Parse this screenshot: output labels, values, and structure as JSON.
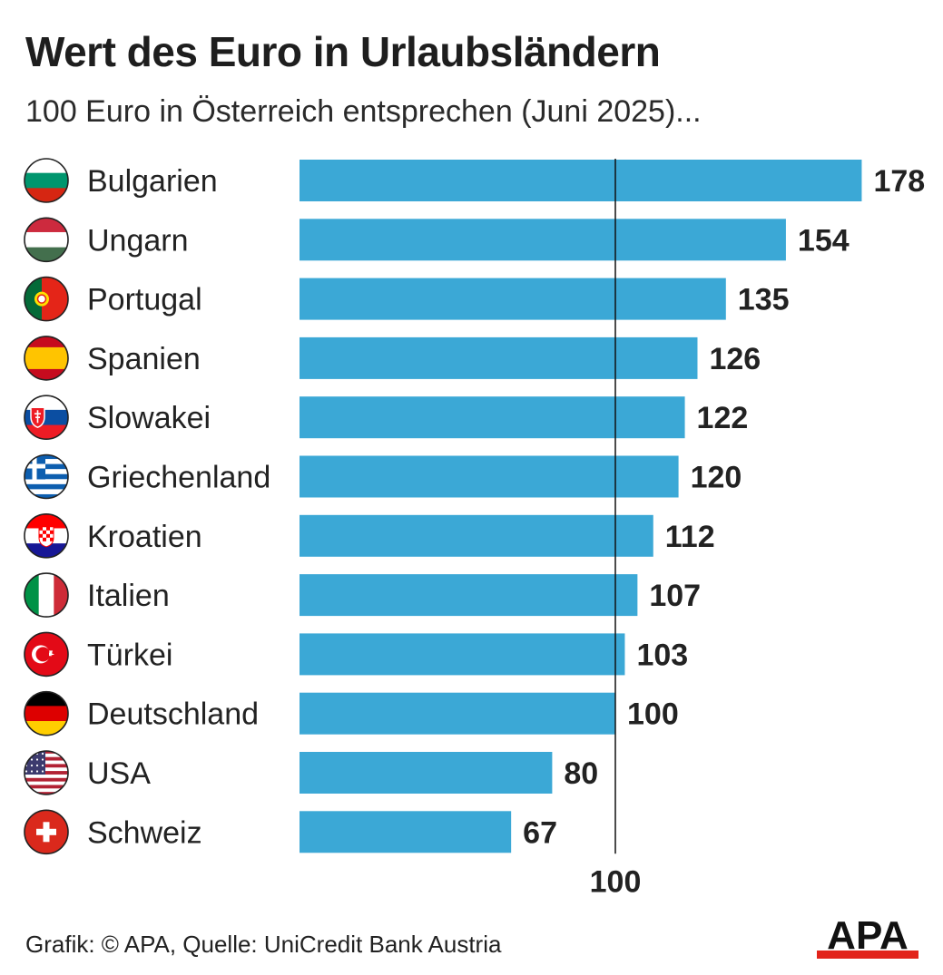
{
  "title": "Wert des Euro in Urlaubsländern",
  "subtitle": "100 Euro in Österreich entsprechen (Juni 2025)...",
  "footer": "Grafik: © APA, Quelle: UniCredit Bank Austria",
  "logo_text": "APA",
  "colors": {
    "bar": "#3BA8D6",
    "text": "#222222",
    "logo_red": "#E2231A",
    "reference_line": "#111111"
  },
  "chart_data": {
    "type": "bar",
    "orientation": "horizontal",
    "categories": [
      "Bulgarien",
      "Ungarn",
      "Portugal",
      "Spanien",
      "Slowakei",
      "Griechenland",
      "Kroatien",
      "Italien",
      "Türkei",
      "Deutschland",
      "USA",
      "Schweiz"
    ],
    "values": [
      178,
      154,
      135,
      126,
      122,
      120,
      112,
      107,
      103,
      100,
      80,
      67
    ],
    "flags": [
      "bulgaria-flag",
      "hungary-flag",
      "portugal-flag",
      "spain-flag",
      "slovakia-flag",
      "greece-flag",
      "croatia-flag",
      "italy-flag",
      "turkey-flag",
      "germany-flag",
      "usa-flag",
      "switzerland-flag"
    ],
    "reference_line": {
      "value": 100,
      "label": "100"
    },
    "xlim": [
      0,
      178
    ],
    "grid": false,
    "legend": "none",
    "xlabel": "",
    "ylabel": ""
  }
}
